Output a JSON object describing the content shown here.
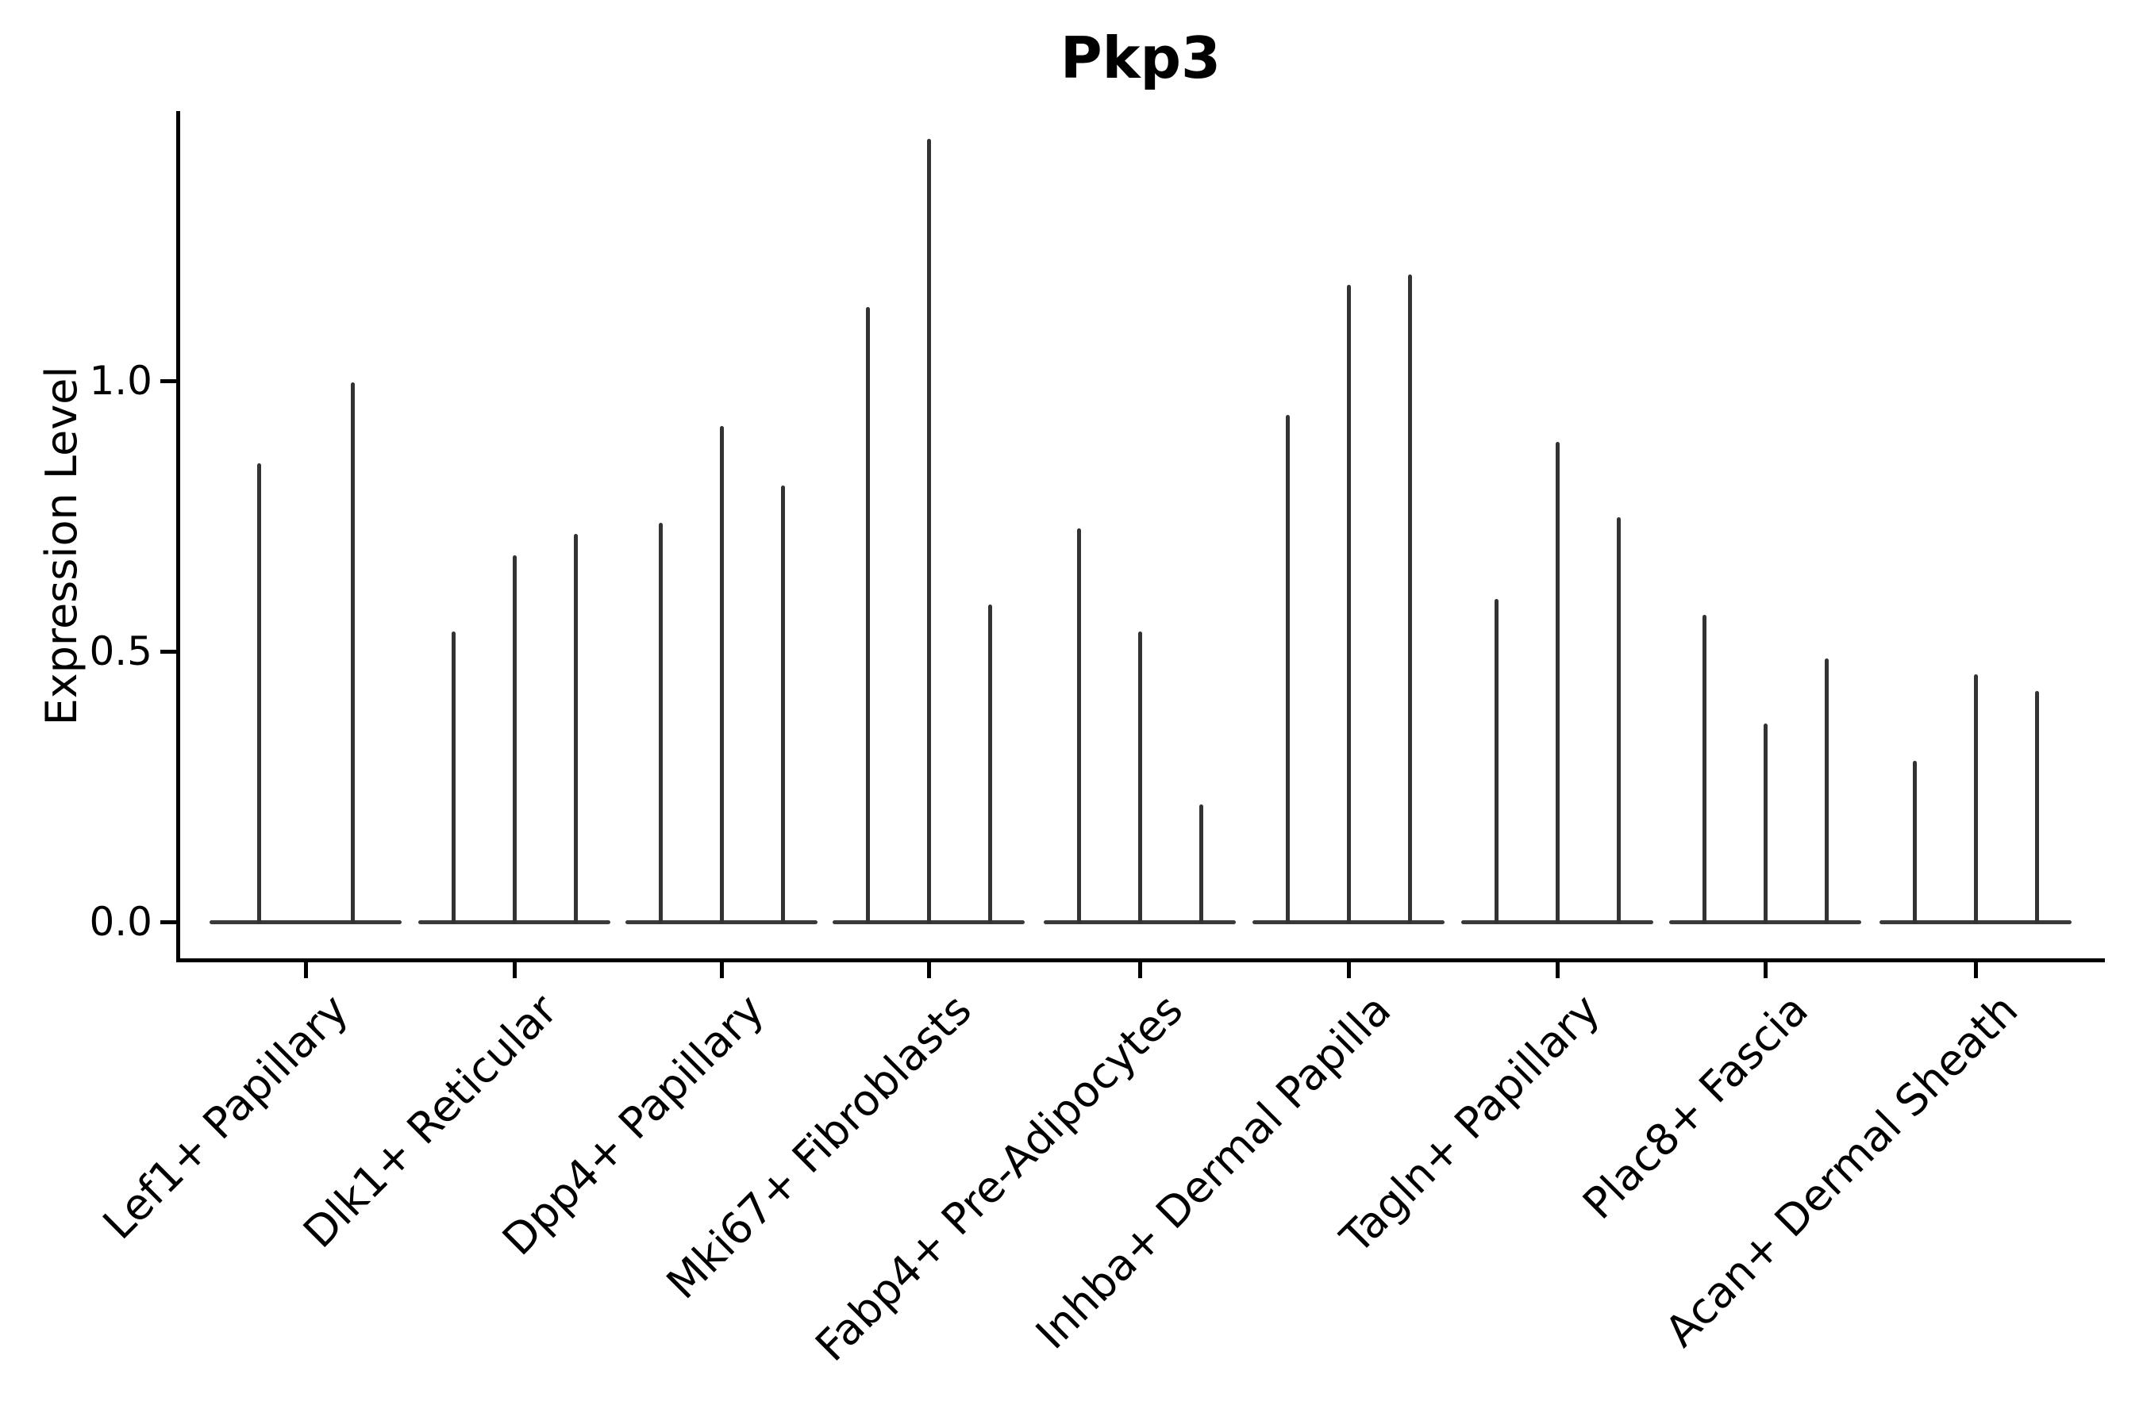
{
  "title": "Pkp3",
  "colors": {
    "spike": "#333333",
    "baseline": "#3a3a3a",
    "axis": "#000000",
    "background": "#ffffff"
  },
  "y_axis": {
    "label": "Expression Level",
    "tick_labels": [
      "1.0",
      "0.5",
      "0.0"
    ]
  },
  "chart_data": {
    "type": "violin",
    "title": "Pkp3",
    "xlabel": "",
    "ylabel": "Expression Level",
    "ylim": [
      -0.07,
      1.49
    ],
    "yticks": [
      1.0,
      0.5,
      0.0
    ],
    "grid": false,
    "legend": "none",
    "categories": [
      "Lef1+ Papillary",
      "Dlk1+ Reticular",
      "Dpp4+ Papillary",
      "Mki67+ Fibroblasts",
      "Fabp4+ Pre-Adipocytes",
      "Inhba+ Dermal Papilla",
      "Tagln+ Papillary",
      "Plac8+ Fascia",
      "Acan+ Dermal Sheath"
    ],
    "spike_values": [
      [
        0.85,
        1.0
      ],
      [
        0.54,
        0.68,
        0.72
      ],
      [
        0.74,
        0.92,
        0.81
      ],
      [
        1.14,
        1.45,
        0.59
      ],
      [
        0.73,
        0.54,
        0.22
      ],
      [
        0.94,
        1.18,
        1.2
      ],
      [
        0.6,
        0.89,
        0.75
      ],
      [
        0.57,
        0.37,
        0.49
      ],
      [
        0.3,
        0.46,
        0.43
      ]
    ],
    "description": "Violin plot of Pkp3 expression; each category shows thin violin spikes rising from a wide flat density base at 0."
  }
}
